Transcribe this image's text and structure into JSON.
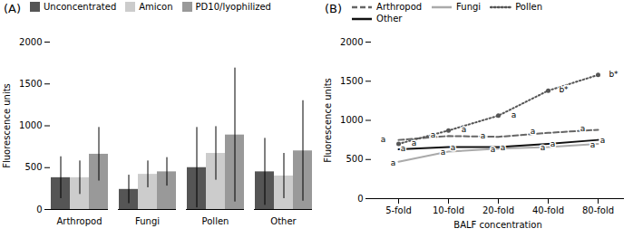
{
  "chart_data": [
    {
      "type": "bar",
      "title": "(A)",
      "categories": [
        "Arthropod",
        "Fungi",
        "Pollen",
        "Other"
      ],
      "series": [
        {
          "name": "Unconcentrated",
          "color": "#555555",
          "values": [
            380,
            240,
            500,
            450
          ],
          "errors": [
            250,
            170,
            480,
            400
          ]
        },
        {
          "name": "Amicon",
          "color": "#cccccc",
          "values": [
            380,
            420,
            670,
            400
          ],
          "errors": [
            200,
            160,
            320,
            270
          ]
        },
        {
          "name": "PD10/lyophilized",
          "color": "#999999",
          "values": [
            660,
            450,
            890,
            700
          ],
          "errors": [
            320,
            170,
            800,
            600
          ]
        }
      ],
      "ylabel": "Fluorescence units",
      "ylim": [
        0,
        2000
      ],
      "yticks": [
        0,
        500,
        1000,
        1500,
        2000
      ],
      "legend": "upper left",
      "grid": false
    },
    {
      "type": "line",
      "title": "(B)",
      "categories": [
        "5-fold",
        "10-fold",
        "20-fold",
        "40-fold",
        "80-fold"
      ],
      "series": [
        {
          "name": "Arthropod",
          "color": "#666666",
          "line_style": "dashed",
          "values": [
            750,
            800,
            790,
            840,
            880
          ]
        },
        {
          "name": "Fungi",
          "color": "#aaaaaa",
          "line_style": "solid",
          "values": [
            470,
            600,
            640,
            660,
            700
          ]
        },
        {
          "name": "Pollen",
          "color": "#555555",
          "line_style": "dotted",
          "marker": "point",
          "values": [
            700,
            870,
            1060,
            1380,
            1580
          ]
        },
        {
          "name": "Other",
          "color": "#111111",
          "line_style": "solid",
          "values": [
            630,
            660,
            660,
            700,
            750
          ]
        }
      ],
      "annotations": [
        {
          "x": "5-fold",
          "y": 760,
          "text": "a"
        },
        {
          "x": "5-fold",
          "y": 460,
          "text": "a"
        },
        {
          "x": "5-fold",
          "y": 710,
          "text": "a"
        },
        {
          "x": "5-fold",
          "y": 635,
          "text": "a"
        },
        {
          "x": "10-fold",
          "y": 815,
          "text": "a"
        },
        {
          "x": "10-fold",
          "y": 590,
          "text": "a"
        },
        {
          "x": "10-fold",
          "y": 880,
          "text": "a"
        },
        {
          "x": "10-fold",
          "y": 655,
          "text": "a"
        },
        {
          "x": "20-fold",
          "y": 800,
          "text": "a"
        },
        {
          "x": "20-fold",
          "y": 630,
          "text": "a"
        },
        {
          "x": "20-fold",
          "y": 1070,
          "text": "a"
        },
        {
          "x": "20-fold",
          "y": 655,
          "text": "a"
        },
        {
          "x": "40-fold",
          "y": 855,
          "text": "a"
        },
        {
          "x": "40-fold",
          "y": 650,
          "text": "a"
        },
        {
          "x": "40-fold",
          "y": 1390,
          "text": "b*"
        },
        {
          "x": "40-fold",
          "y": 695,
          "text": "a"
        },
        {
          "x": "80-fold",
          "y": 895,
          "text": "a"
        },
        {
          "x": "80-fold",
          "y": 690,
          "text": "a"
        },
        {
          "x": "80-fold",
          "y": 1590,
          "text": "b*"
        },
        {
          "x": "80-fold",
          "y": 745,
          "text": "a"
        }
      ],
      "xlabel": "BALF concentration",
      "ylabel": "Fluorescence units",
      "ylim": [
        0,
        2000
      ],
      "yticks": [
        0,
        500,
        1000,
        1500,
        2000
      ],
      "legend": "upper left",
      "grid": false
    }
  ]
}
